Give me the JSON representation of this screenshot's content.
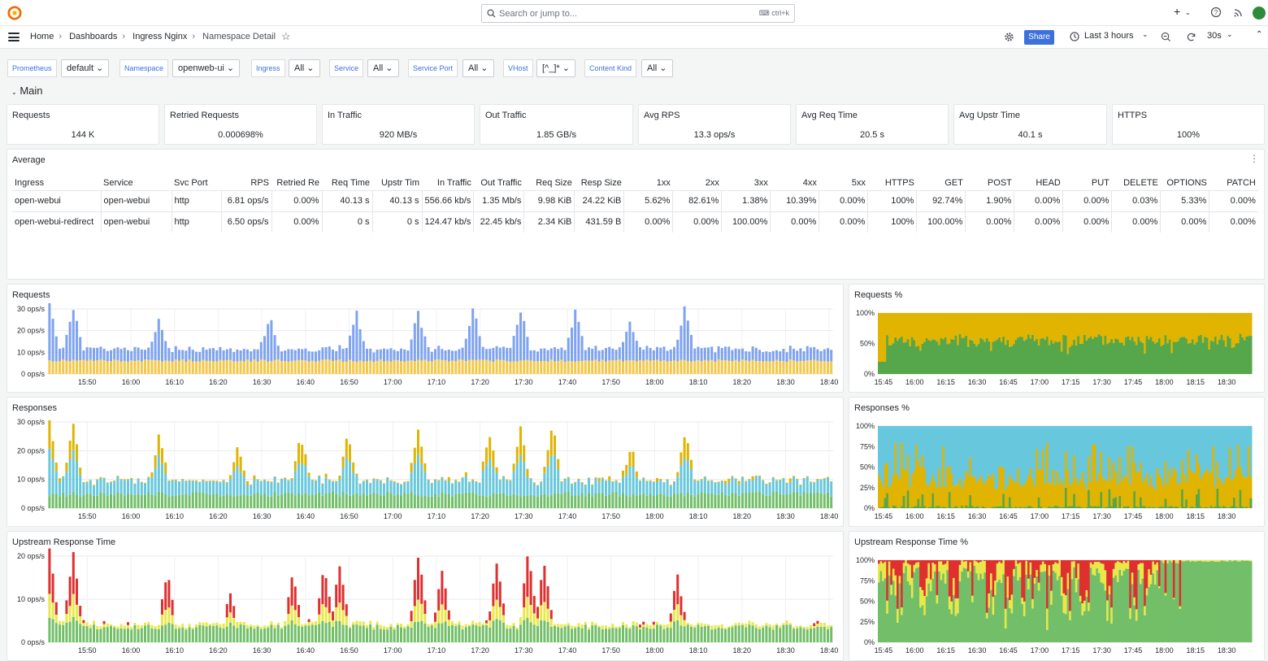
{
  "search": {
    "placeholder": "Search or jump to...",
    "shortcut": "ctrl+k"
  },
  "breadcrumb": [
    "Home",
    "Dashboards",
    "Ingress Nginx",
    "Namespace Detail"
  ],
  "toolbar": {
    "share_label": "Share",
    "time_range": "Last 3 hours",
    "refresh_interval": "30s"
  },
  "variables": [
    {
      "label": "Prometheus",
      "value": "default"
    },
    {
      "label": "Namespace",
      "value": "openweb-ui"
    },
    {
      "label": "Ingress",
      "value": "All"
    },
    {
      "label": "Service",
      "value": "All"
    },
    {
      "label": "Service Port",
      "value": "All"
    },
    {
      "label": "VHost",
      "value": "[^_]*"
    },
    {
      "label": "Content Kind",
      "value": "All"
    }
  ],
  "row_title": "Main",
  "stats": [
    {
      "title": "Requests",
      "value": "144 K"
    },
    {
      "title": "Retried Requests",
      "value": "0.000698%"
    },
    {
      "title": "In Traffic",
      "value": "920 MB/s"
    },
    {
      "title": "Out Traffic",
      "value": "1.85 GB/s"
    },
    {
      "title": "Avg RPS",
      "value": "13.3 ops/s"
    },
    {
      "title": "Avg Req Time",
      "value": "20.5 s"
    },
    {
      "title": "Avg Upstr Time",
      "value": "40.1 s"
    },
    {
      "title": "HTTPS",
      "value": "100%"
    }
  ],
  "average_table": {
    "title": "Average",
    "columns": [
      "Ingress",
      "Service",
      "Svc Port",
      "RPS",
      "Retried Re",
      "Req Time",
      "Upstr Tim",
      "In Traffic",
      "Out Traffic",
      "Req Size",
      "Resp Size",
      "1xx",
      "2xx",
      "3xx",
      "4xx",
      "5xx",
      "HTTPS",
      "GET",
      "POST",
      "HEAD",
      "PUT",
      "DELETE",
      "OPTIONS",
      "PATCH"
    ],
    "rows": [
      [
        "open-webui",
        "open-webui",
        "http",
        "6.81 ops/s",
        "0.00%",
        "40.13 s",
        "40.13 s",
        "556.66 kb/s",
        "1.35 Mb/s",
        "9.98 KiB",
        "24.22 KiB",
        "5.62%",
        "82.61%",
        "1.38%",
        "10.39%",
        "0.00%",
        "100%",
        "92.74%",
        "1.90%",
        "0.00%",
        "0.00%",
        "0.03%",
        "5.33%",
        "0.00%"
      ],
      [
        "open-webui-redirect",
        "open-webui",
        "http",
        "6.50 ops/s",
        "0.00%",
        "0 s",
        "0 s",
        "124.47 kb/s",
        "22.45 kb/s",
        "2.34 KiB",
        "431.59 B",
        "0.00%",
        "0.00%",
        "100.00%",
        "0.00%",
        "0.00%",
        "100%",
        "100.00%",
        "0.00%",
        "0.00%",
        "0.00%",
        "0.00%",
        "0.00%",
        "0.00%"
      ]
    ]
  },
  "colors": {
    "blue": "#7ea3f0",
    "yellow": "#f2c94c",
    "green": "#73bf69",
    "cyan": "#67c7dd",
    "orange_yellow": "#e0b400",
    "red": "#e02f2f",
    "dark_green": "#56a64b",
    "lime": "#e8e84a"
  },
  "chart_data": [
    {
      "type": "bar",
      "title": "Requests",
      "x_ticks": [
        "15:50",
        "16:00",
        "16:10",
        "16:20",
        "16:30",
        "16:40",
        "16:50",
        "17:00",
        "17:10",
        "17:20",
        "17:30",
        "17:40",
        "17:50",
        "18:00",
        "18:10",
        "18:20",
        "18:30",
        "18:40"
      ],
      "y_ticks": [
        "0 ops/s",
        "10 ops/s",
        "20 ops/s",
        "30 ops/s"
      ],
      "ylim": [
        0,
        32
      ],
      "stacked": true,
      "series": [
        {
          "color": "#f2c94c",
          "base_value": 6.5
        },
        {
          "color": "#7ea3f0",
          "base_value": 6.5
        }
      ],
      "spikes": [
        [
          0.0,
          27
        ],
        [
          0.03,
          26
        ],
        [
          0.14,
          16
        ],
        [
          0.28,
          18
        ],
        [
          0.39,
          22
        ],
        [
          0.47,
          24
        ],
        [
          0.54,
          24
        ],
        [
          0.6,
          24
        ],
        [
          0.67,
          25
        ],
        [
          0.74,
          16
        ],
        [
          0.81,
          24
        ]
      ]
    },
    {
      "type": "bar",
      "title": "Responses",
      "x_ticks": [
        "15:50",
        "16:00",
        "16:10",
        "16:20",
        "16:30",
        "16:40",
        "16:50",
        "17:00",
        "17:10",
        "17:20",
        "17:30",
        "17:40",
        "17:50",
        "18:00",
        "18:10",
        "18:20",
        "18:30",
        "18:40"
      ],
      "y_ticks": [
        "0 ops/s",
        "10 ops/s",
        "20 ops/s",
        "30 ops/s"
      ],
      "ylim": [
        0,
        34
      ],
      "stacked": true,
      "series": [
        {
          "color": "#73bf69"
        },
        {
          "color": "#67c7dd"
        },
        {
          "color": "#e0b400"
        }
      ],
      "spikes": [
        [
          0.0,
          31
        ],
        [
          0.03,
          30
        ],
        [
          0.14,
          24
        ],
        [
          0.24,
          18
        ],
        [
          0.32,
          24
        ],
        [
          0.38,
          24
        ],
        [
          0.47,
          28
        ],
        [
          0.56,
          26
        ],
        [
          0.6,
          28
        ],
        [
          0.64,
          30
        ],
        [
          0.74,
          17
        ],
        [
          0.81,
          26
        ]
      ]
    },
    {
      "type": "bar",
      "title": "Upstream Response Time",
      "x_ticks": [
        "15:50",
        "16:00",
        "16:10",
        "16:20",
        "16:30",
        "16:40",
        "16:50",
        "17:00",
        "17:10",
        "17:20",
        "17:30",
        "17:40",
        "17:50",
        "18:00",
        "18:10",
        "18:20",
        "18:30",
        "18:40"
      ],
      "y_ticks": [
        "0 ops/s",
        "10 ops/s",
        "20 ops/s"
      ],
      "ylim": [
        0,
        24
      ],
      "stacked": true,
      "series": [
        {
          "color": "#73bf69"
        },
        {
          "color": "#e8e84a"
        },
        {
          "color": "#e02f2f"
        }
      ],
      "spikes": [
        [
          0.0,
          23
        ],
        [
          0.03,
          22
        ],
        [
          0.15,
          17
        ],
        [
          0.23,
          10
        ],
        [
          0.31,
          16
        ],
        [
          0.35,
          18
        ],
        [
          0.37,
          19
        ],
        [
          0.47,
          22
        ],
        [
          0.5,
          17
        ],
        [
          0.57,
          19
        ],
        [
          0.61,
          23
        ],
        [
          0.63,
          19
        ],
        [
          0.8,
          15
        ]
      ]
    },
    {
      "type": "area",
      "title": "Requests %",
      "x_ticks": [
        "15:45",
        "16:00",
        "16:15",
        "16:30",
        "16:45",
        "17:00",
        "17:15",
        "17:30",
        "17:45",
        "18:00",
        "18:15",
        "18:30"
      ],
      "y_ticks": [
        "0%",
        "50%",
        "100%"
      ],
      "ylim": [
        0,
        100
      ],
      "series": [
        {
          "color": "#56a64b",
          "mean": 55
        },
        {
          "color": "#e0b400",
          "mean": 45
        }
      ]
    },
    {
      "type": "area",
      "title": "Responses %",
      "x_ticks": [
        "15:45",
        "16:00",
        "16:15",
        "16:30",
        "16:45",
        "17:00",
        "17:15",
        "17:30",
        "17:45",
        "18:00",
        "18:15",
        "18:30"
      ],
      "y_ticks": [
        "0%",
        "25%",
        "50%",
        "75%",
        "100%"
      ],
      "ylim": [
        0,
        100
      ],
      "series": [
        {
          "color": "#56a64b",
          "mean": 6
        },
        {
          "color": "#e0b400",
          "mean": 40
        },
        {
          "color": "#67c7dd",
          "mean": 54
        }
      ]
    },
    {
      "type": "area",
      "title": "Upstream Response Time %",
      "x_ticks": [
        "15:45",
        "16:00",
        "16:15",
        "16:30",
        "16:45",
        "17:00",
        "17:15",
        "17:30",
        "17:45",
        "18:00",
        "18:15",
        "18:30"
      ],
      "y_ticks": [
        "0%",
        "25%",
        "50%",
        "75%",
        "100%"
      ],
      "ylim": [
        0,
        100
      ],
      "series": [
        {
          "color": "#73bf69",
          "mean": 75
        },
        {
          "color": "#e8e84a",
          "mean": 12
        },
        {
          "color": "#e02f2f",
          "mean": 13
        }
      ]
    }
  ]
}
